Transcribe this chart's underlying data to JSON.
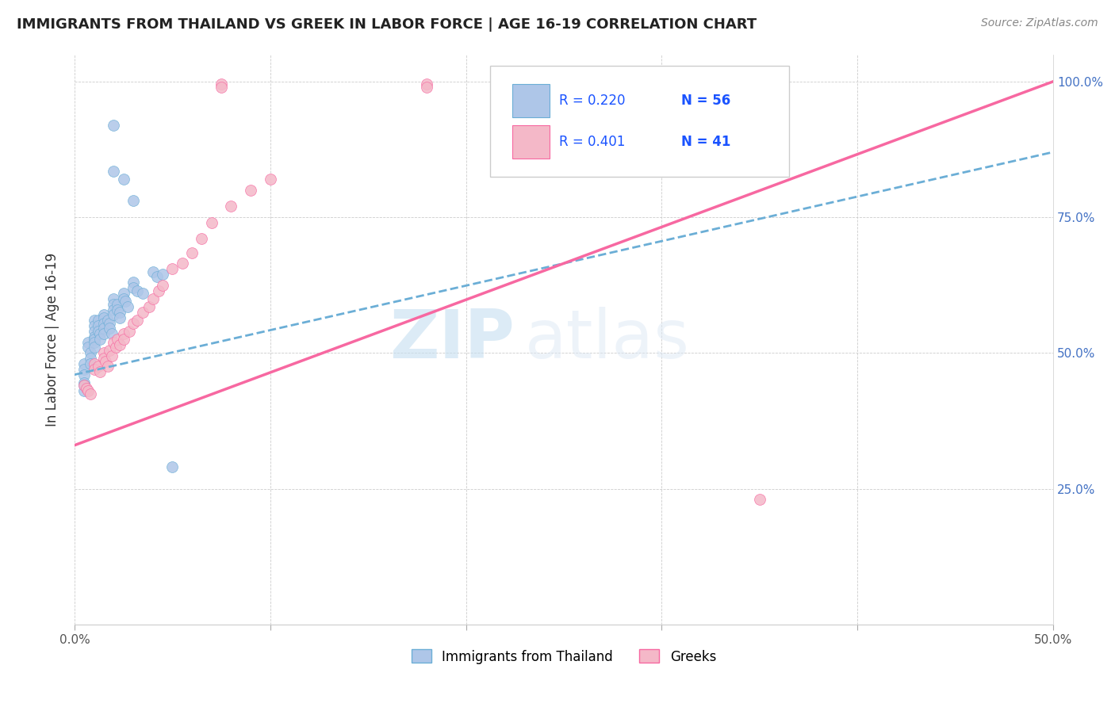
{
  "title": "IMMIGRANTS FROM THAILAND VS GREEK IN LABOR FORCE | AGE 16-19 CORRELATION CHART",
  "source": "Source: ZipAtlas.com",
  "ylabel": "In Labor Force | Age 16-19",
  "xlim": [
    0.0,
    0.5
  ],
  "ylim": [
    0.0,
    1.05
  ],
  "x_ticks": [
    0.0,
    0.1,
    0.2,
    0.3,
    0.4,
    0.5
  ],
  "x_tick_labels": [
    "0.0%",
    "",
    "",
    "",
    "",
    "50.0%"
  ],
  "y_ticks_right": [
    0.0,
    0.25,
    0.5,
    0.75,
    1.0
  ],
  "y_tick_labels_right": [
    "",
    "25.0%",
    "50.0%",
    "75.0%",
    "100.0%"
  ],
  "legend_R1": "R = 0.220",
  "legend_N1": "N = 56",
  "legend_R2": "R = 0.401",
  "legend_N2": "N = 41",
  "color_thailand": "#aec6e8",
  "color_greek": "#f4b8c8",
  "trendline_color_thailand": "#6baed6",
  "trendline_color_greek": "#f768a1",
  "background_color": "#ffffff",
  "watermark_zip": "ZIP",
  "watermark_atlas": "atlas",
  "thailand_x": [
    0.02,
    0.02,
    0.025,
    0.03,
    0.005,
    0.005,
    0.005,
    0.005,
    0.005,
    0.005,
    0.007,
    0.007,
    0.008,
    0.008,
    0.008,
    0.01,
    0.01,
    0.01,
    0.01,
    0.01,
    0.01,
    0.01,
    0.012,
    0.012,
    0.012,
    0.013,
    0.013,
    0.015,
    0.015,
    0.015,
    0.015,
    0.015,
    0.017,
    0.018,
    0.018,
    0.019,
    0.02,
    0.02,
    0.02,
    0.02,
    0.022,
    0.022,
    0.023,
    0.023,
    0.025,
    0.025,
    0.026,
    0.027,
    0.03,
    0.03,
    0.032,
    0.035,
    0.04,
    0.042,
    0.045,
    0.05
  ],
  "thailand_y": [
    0.92,
    0.835,
    0.82,
    0.78,
    0.48,
    0.47,
    0.46,
    0.445,
    0.44,
    0.43,
    0.52,
    0.51,
    0.5,
    0.49,
    0.48,
    0.56,
    0.55,
    0.54,
    0.53,
    0.525,
    0.52,
    0.51,
    0.56,
    0.55,
    0.54,
    0.535,
    0.525,
    0.57,
    0.565,
    0.555,
    0.545,
    0.535,
    0.56,
    0.555,
    0.545,
    0.535,
    0.6,
    0.59,
    0.58,
    0.57,
    0.59,
    0.58,
    0.575,
    0.565,
    0.61,
    0.6,
    0.595,
    0.585,
    0.63,
    0.62,
    0.615,
    0.61,
    0.65,
    0.64,
    0.645,
    0.29
  ],
  "greek_x": [
    0.075,
    0.075,
    0.18,
    0.18,
    0.005,
    0.006,
    0.007,
    0.008,
    0.01,
    0.01,
    0.012,
    0.013,
    0.015,
    0.015,
    0.016,
    0.017,
    0.018,
    0.019,
    0.02,
    0.021,
    0.022,
    0.023,
    0.025,
    0.025,
    0.028,
    0.03,
    0.032,
    0.035,
    0.038,
    0.04,
    0.043,
    0.045,
    0.05,
    0.055,
    0.06,
    0.065,
    0.07,
    0.08,
    0.09,
    0.1,
    0.35
  ],
  "greek_y": [
    0.995,
    0.99,
    0.995,
    0.99,
    0.44,
    0.435,
    0.43,
    0.425,
    0.48,
    0.47,
    0.475,
    0.465,
    0.5,
    0.49,
    0.485,
    0.475,
    0.505,
    0.495,
    0.52,
    0.51,
    0.525,
    0.515,
    0.535,
    0.525,
    0.54,
    0.555,
    0.56,
    0.575,
    0.585,
    0.6,
    0.615,
    0.625,
    0.655,
    0.665,
    0.685,
    0.71,
    0.74,
    0.77,
    0.8,
    0.82,
    0.23
  ]
}
